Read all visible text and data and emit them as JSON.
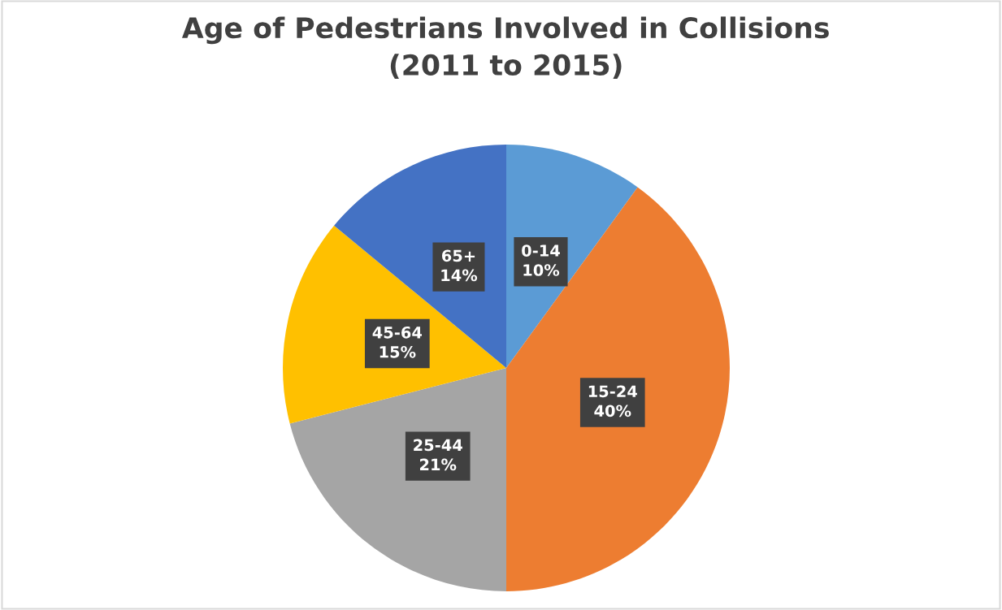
{
  "chart_data": {
    "type": "pie",
    "title": "Age of Pedestrians Involved in Collisions\n(2011 to 2015)",
    "categories": [
      "0-14",
      "15-24",
      "25-44",
      "45-64",
      "65+"
    ],
    "values": [
      10,
      40,
      21,
      15,
      14
    ],
    "value_labels": [
      "10%",
      "40%",
      "21%",
      "15%",
      "14%"
    ],
    "colors": [
      "#5b9bd5",
      "#ed7d31",
      "#a5a5a5",
      "#ffc000",
      "#4472c4"
    ],
    "legend": false
  }
}
